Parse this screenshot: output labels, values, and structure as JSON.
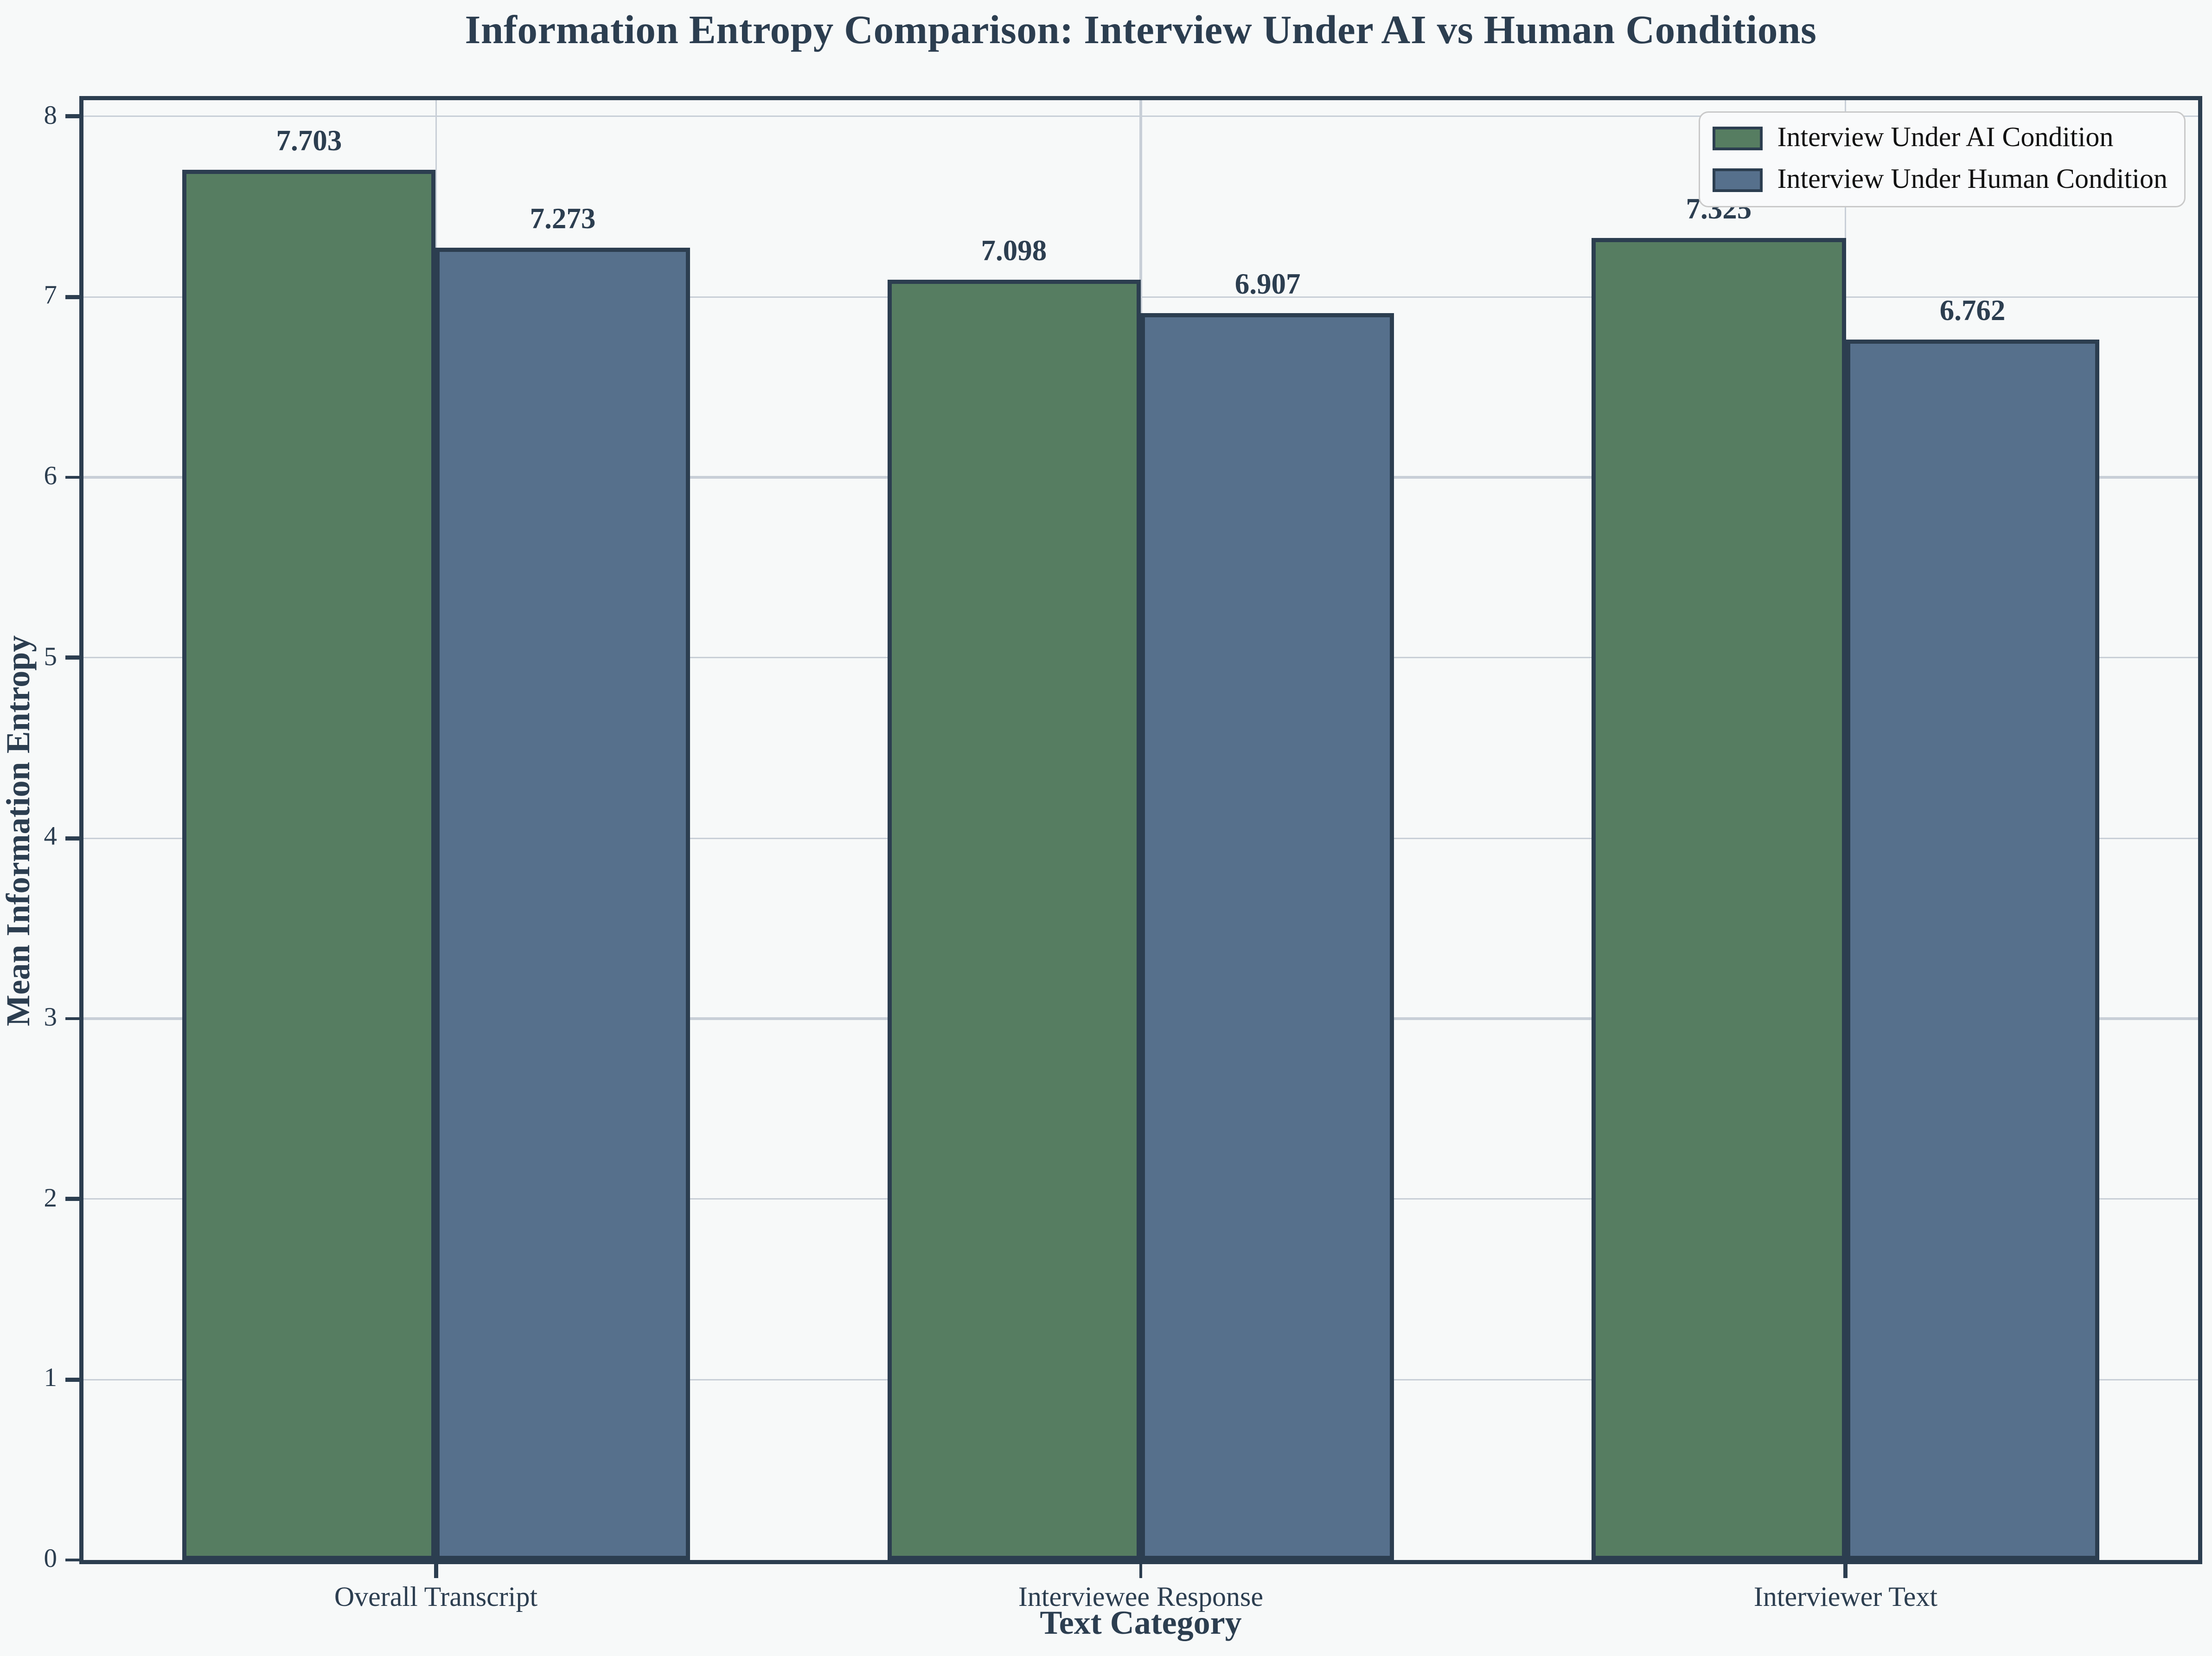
{
  "chart_data": {
    "type": "bar",
    "title": "Information Entropy Comparison: Interview Under AI vs Human Conditions",
    "categories": [
      "Overall Transcript",
      "Interviewee Response",
      "Interviewer Text"
    ],
    "series": [
      {
        "name": "Interview Under AI Condition",
        "color": "#567d61",
        "values": [
          7.703,
          7.098,
          7.325
        ]
      },
      {
        "name": "Interview Under Human Condition",
        "color": "#56708c",
        "values": [
          7.273,
          6.907,
          6.762
        ]
      }
    ],
    "xlabel": "Text Category",
    "ylabel": "Mean Information Entropy",
    "ylim": [
      0,
      8.09
    ],
    "yticks": [
      0,
      1,
      2,
      3,
      4,
      5,
      6,
      7,
      8
    ],
    "value_label_decimals": 3,
    "grid": "both",
    "legend_position": "upper right",
    "colors": {
      "background": "#f7f9f9",
      "axis": "#2c3e50",
      "grid": "#c8cfd7",
      "text": "#2c3e50",
      "legend_background": "#f9fafb",
      "legend_border": "#c9c9c9",
      "legend_text": "#111111"
    }
  }
}
